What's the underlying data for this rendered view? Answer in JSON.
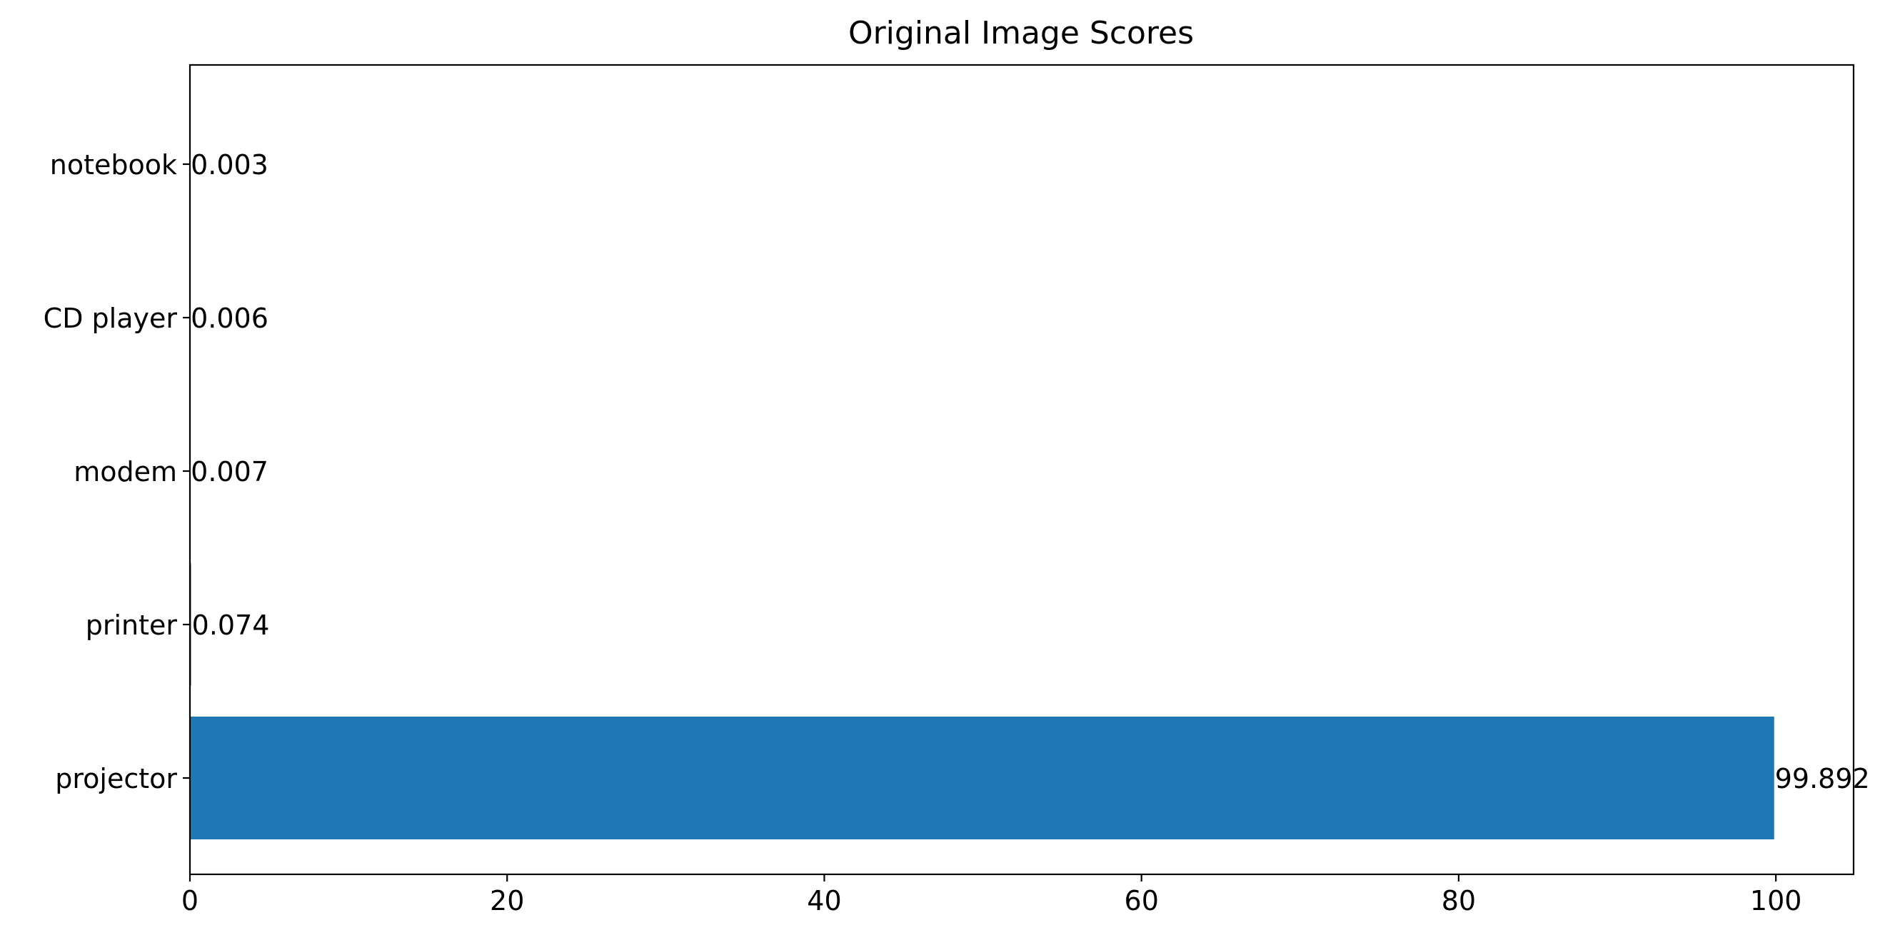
{
  "chart_data": {
    "type": "bar",
    "orientation": "horizontal",
    "title": "Original Image Scores",
    "xlabel": "",
    "ylabel": "",
    "categories": [
      "projector",
      "printer",
      "modem",
      "CD player",
      "notebook"
    ],
    "values": [
      99.892,
      0.074,
      0.007,
      0.006,
      0.003
    ],
    "value_labels": [
      "99.892",
      "0.074",
      "0.007",
      "0.006",
      "0.003"
    ],
    "xlim": [
      0,
      104.9
    ],
    "xticks": [
      0,
      20,
      40,
      60,
      80,
      100
    ],
    "xtick_labels": [
      "0",
      "20",
      "40",
      "60",
      "80",
      "100"
    ],
    "grid": false,
    "bar_color": "#1f77b4"
  }
}
